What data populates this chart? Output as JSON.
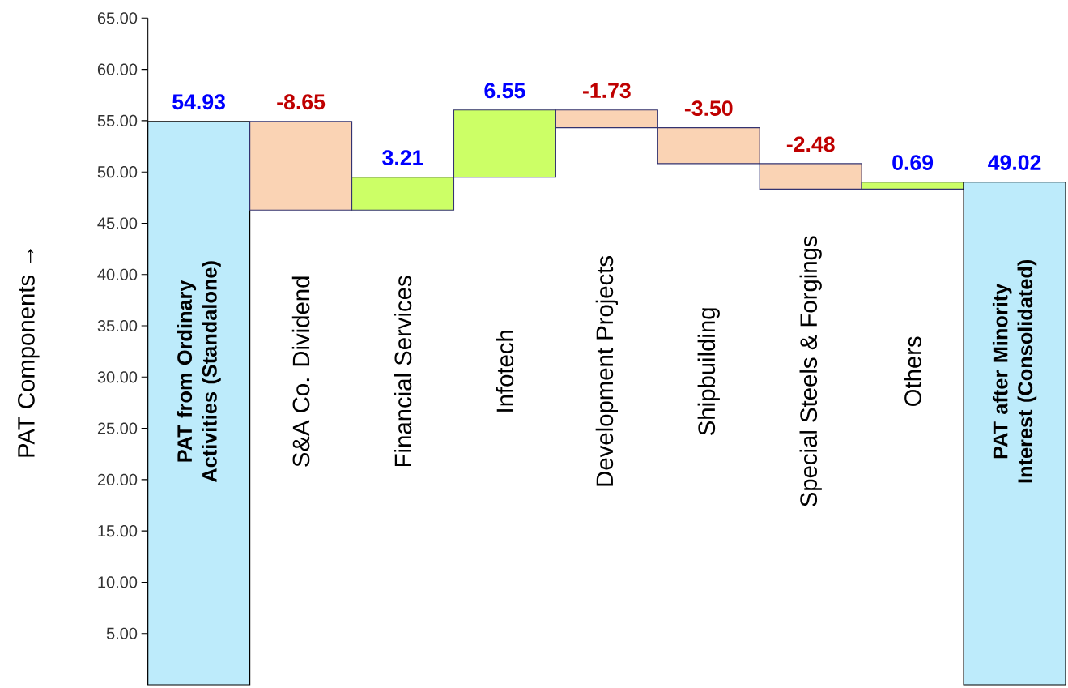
{
  "chart_data": {
    "type": "bar",
    "ylabel": "PAT Components →",
    "categories": [
      "PAT from Ordinary Activities (Standalone)",
      "S&A Co. Dividend",
      "Financial Services",
      "Infotech",
      "Development Projects",
      "Shipbuilding",
      "Special Steels & Forgings",
      "Others",
      "PAT after Minority Interest (Consolidated)"
    ],
    "values": [
      54.93,
      -8.65,
      3.21,
      6.55,
      -1.73,
      -3.5,
      -2.48,
      0.69,
      49.02
    ],
    "base": [
      0,
      54.93,
      46.28,
      49.49,
      56.04,
      54.31,
      50.81,
      48.33,
      0
    ],
    "colors": [
      "#bdebfb",
      "#fad3b4",
      "#ccff66",
      "#ccff66",
      "#fad3b4",
      "#fad3b4",
      "#fad3b4",
      "#ccff66",
      "#bdebfb"
    ],
    "value_labels": [
      "54.93",
      "-8.65",
      "3.21",
      "6.55",
      "-1.73",
      "-3.50",
      "-2.48",
      "0.69",
      "49.02"
    ],
    "ylim": [
      0,
      65
    ],
    "yticks": [
      {
        "value": 5,
        "label": "5.00"
      },
      {
        "value": 10,
        "label": "10.00"
      },
      {
        "value": 15,
        "label": "15.00"
      },
      {
        "value": 20,
        "label": "20.00"
      },
      {
        "value": 25,
        "label": "25.00"
      },
      {
        "value": 30,
        "label": "30.00"
      },
      {
        "value": 35,
        "label": "35.00"
      },
      {
        "value": 40,
        "label": "40.00"
      },
      {
        "value": 45,
        "label": "45.00"
      },
      {
        "value": 50,
        "label": "50.00"
      },
      {
        "value": 55,
        "label": "55.00"
      },
      {
        "value": 60,
        "label": "60.00"
      },
      {
        "value": 65,
        "label": "65.00"
      }
    ]
  }
}
